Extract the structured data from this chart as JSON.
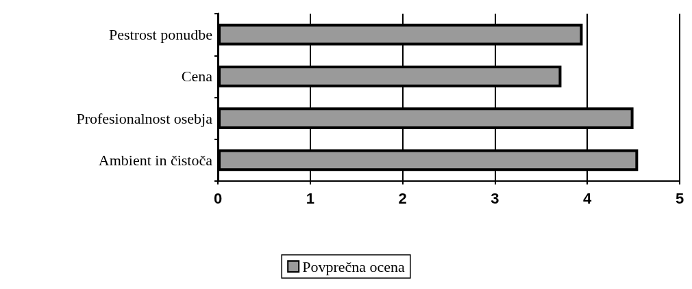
{
  "chart_data": {
    "type": "bar",
    "orientation": "horizontal",
    "categories": [
      "Pestrost ponudbe",
      "Cena",
      "Profesionalnost osebja",
      "Ambient in čistoča"
    ],
    "series": [
      {
        "name": "Povprečna ocena",
        "color": "#9a9a9a",
        "values": [
          3.95,
          3.72,
          4.5,
          4.55
        ]
      }
    ],
    "xlim": [
      0,
      5
    ],
    "xticks": [
      0,
      1,
      2,
      3,
      4,
      5
    ],
    "grid": "x",
    "legend": "bottom"
  }
}
